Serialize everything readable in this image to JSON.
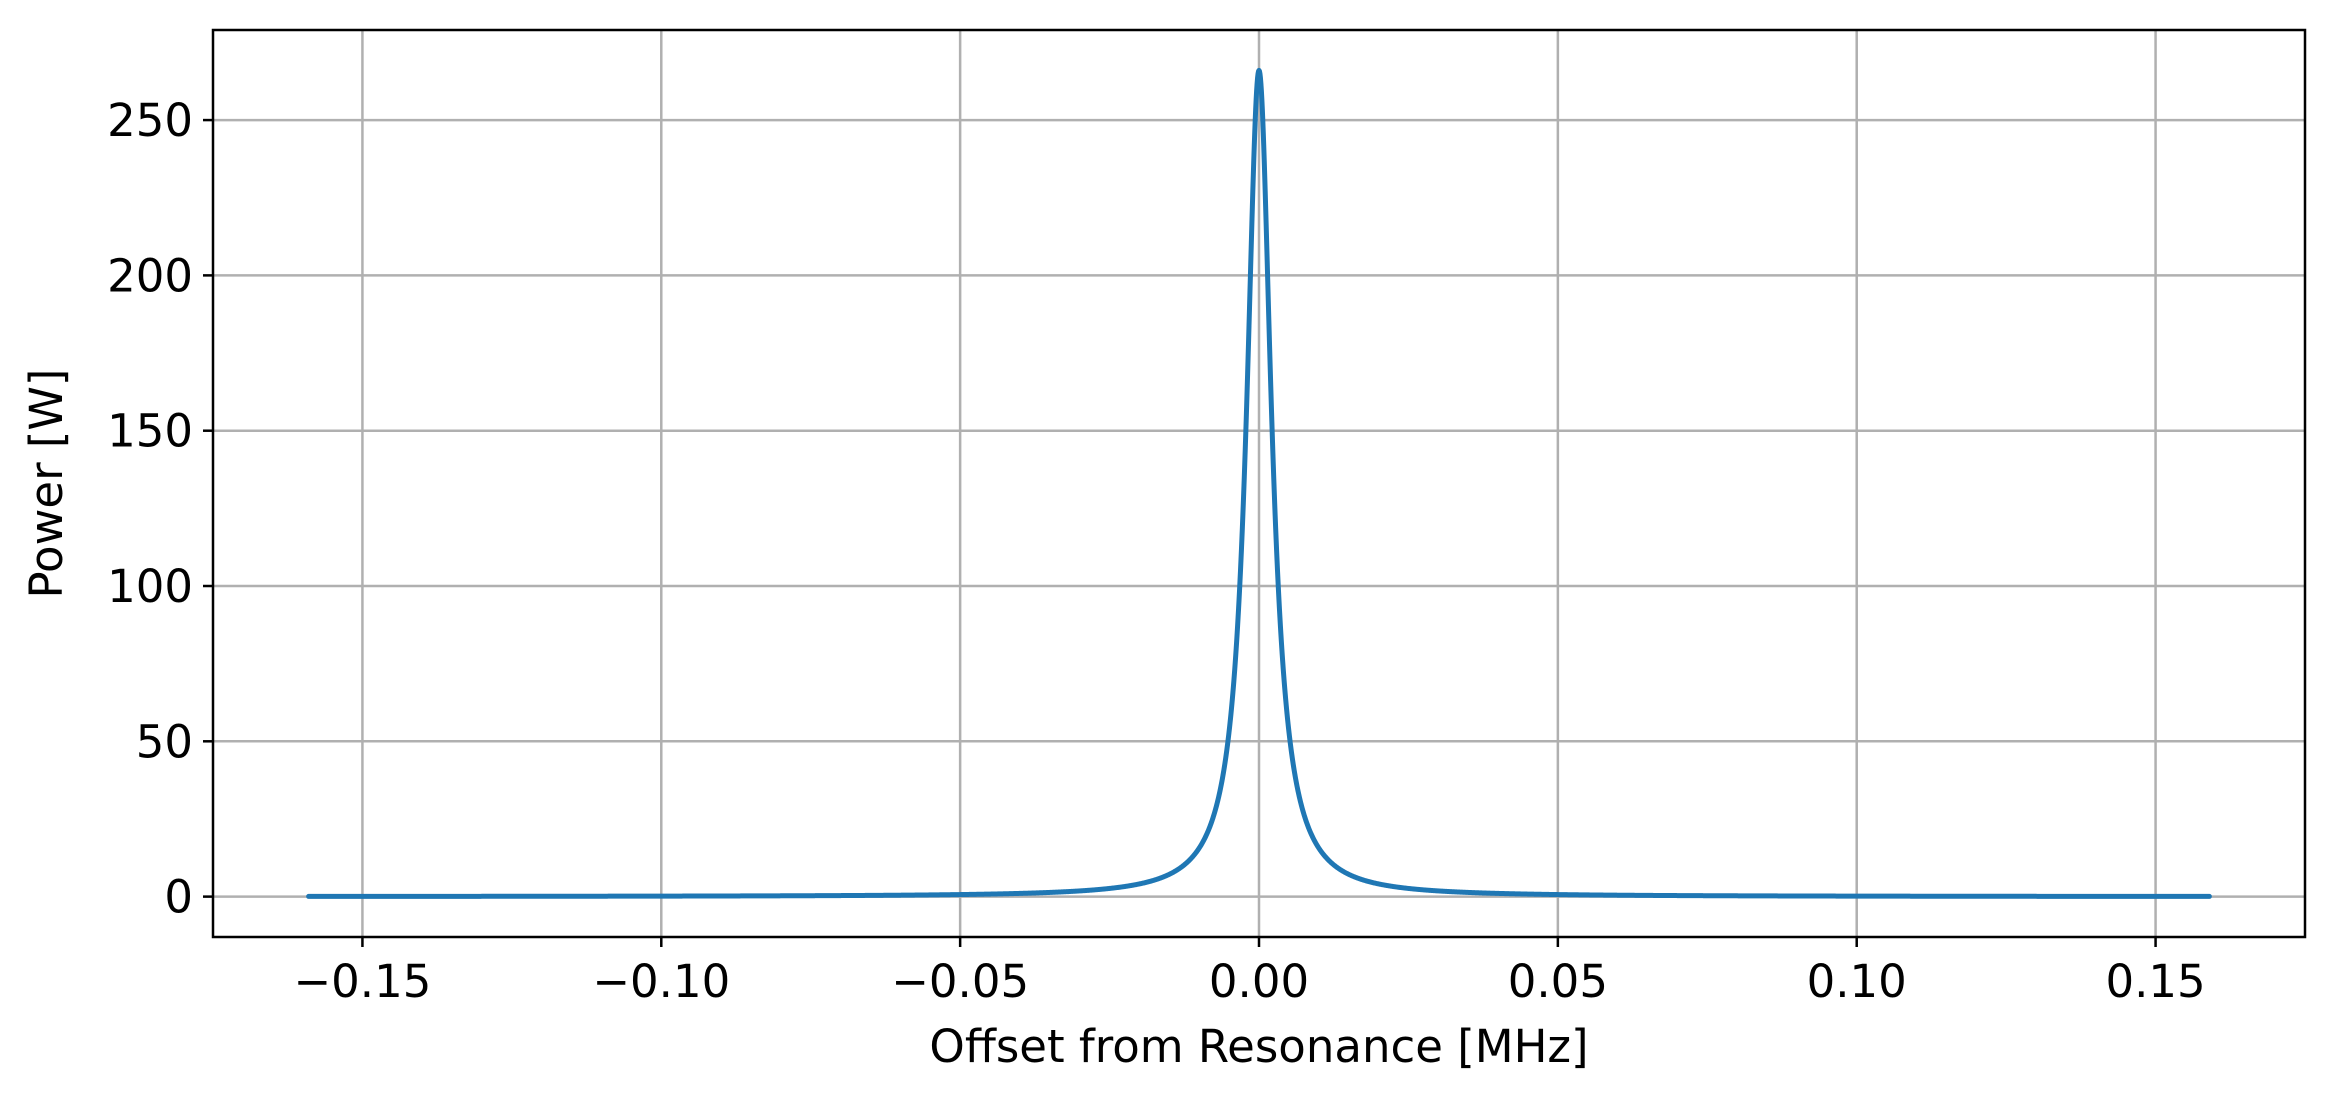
{
  "chart_data": {
    "type": "line",
    "title": "",
    "xlabel": "Offset from Resonance [MHz]",
    "ylabel": "Power [W]",
    "xlim": [
      -0.175,
      0.175
    ],
    "ylim": [
      -13,
      279
    ],
    "grid": true,
    "legend": "none",
    "x_ticks": [
      -0.15,
      -0.1,
      -0.05,
      0.0,
      0.05,
      0.1,
      0.15
    ],
    "x_tick_labels": [
      "−0.15",
      "−0.10",
      "−0.05",
      "0.00",
      "0.05",
      "0.10",
      "0.15"
    ],
    "y_ticks": [
      0,
      50,
      100,
      150,
      200,
      250
    ],
    "y_tick_labels": [
      "0",
      "50",
      "100",
      "150",
      "200",
      "250"
    ],
    "series": [
      {
        "name": "Power",
        "color": "#1f77b4",
        "model": "lorentzian",
        "center": 0.0,
        "peak": 266,
        "hwhm": 0.0025,
        "x_range": [
          -0.159,
          0.159
        ],
        "sample_points": [
          {
            "x": -0.159,
            "y": 0.07
          },
          {
            "x": -0.1,
            "y": 0.17
          },
          {
            "x": -0.05,
            "y": 0.66
          },
          {
            "x": -0.02,
            "y": 4.1
          },
          {
            "x": -0.01,
            "y": 15.6
          },
          {
            "x": -0.005,
            "y": 53.2
          },
          {
            "x": -0.0025,
            "y": 133
          },
          {
            "x": 0.0,
            "y": 266
          },
          {
            "x": 0.0025,
            "y": 133
          },
          {
            "x": 0.005,
            "y": 53.2
          },
          {
            "x": 0.01,
            "y": 15.6
          },
          {
            "x": 0.02,
            "y": 4.1
          },
          {
            "x": 0.05,
            "y": 0.66
          },
          {
            "x": 0.1,
            "y": 0.17
          },
          {
            "x": 0.159,
            "y": 0.07
          }
        ]
      }
    ]
  }
}
